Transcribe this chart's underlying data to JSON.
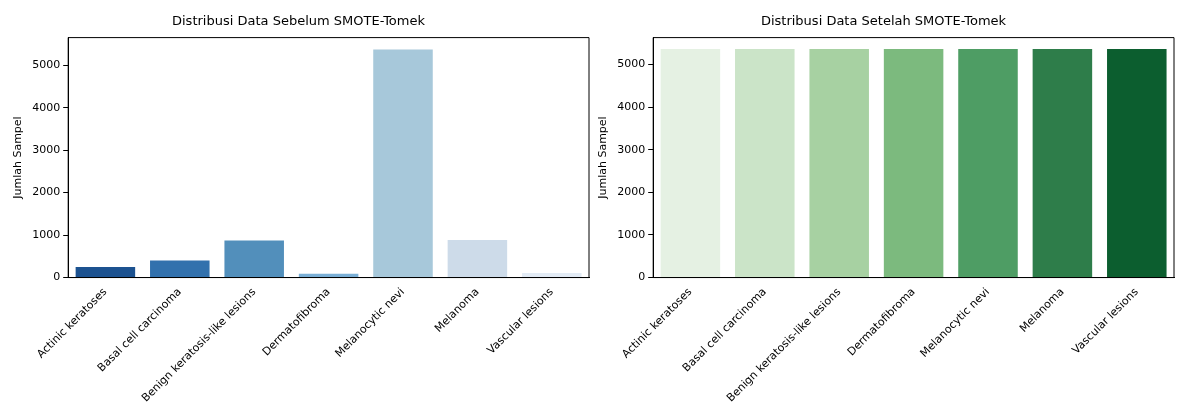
{
  "chart_data": [
    {
      "type": "bar",
      "title": "Distribusi Data Sebelum SMOTE-Tomek",
      "ylabel": "Jumlah Sampel",
      "categories": [
        "Actinic keratoses",
        "Basal cell carcinoma",
        "Benign keratosis-like lesions",
        "Dermatofibroma",
        "Melanocytic nevi",
        "Melanoma",
        "Vascular lesions"
      ],
      "values": [
        250,
        400,
        870,
        90,
        5370,
        885,
        110
      ],
      "colors": [
        "#1c5290",
        "#3271ad",
        "#528fbb",
        "#7aafd6",
        "#a7c8da",
        "#cddbe9",
        "#e2ebf5"
      ],
      "ylim": [
        0,
        5650
      ],
      "yticks": [
        0,
        1000,
        2000,
        3000,
        4000,
        5000
      ],
      "grid": false
    },
    {
      "type": "bar",
      "title": "Distribusi Data Setelah SMOTE-Tomek",
      "ylabel": "Jumlah Sampel",
      "categories": [
        "Actinic keratoses",
        "Basal cell carcinoma",
        "Benign keratosis-like lesions",
        "Dermatofibroma",
        "Melanocytic nevi",
        "Melanoma",
        "Vascular lesions"
      ],
      "values": [
        5360,
        5360,
        5360,
        5360,
        5360,
        5360,
        5360
      ],
      "colors": [
        "#e5f1e3",
        "#cbe4c8",
        "#a7d1a2",
        "#7cba7e",
        "#4e9d64",
        "#2e7d4a",
        "#0c5e2f"
      ],
      "ylim": [
        0,
        5630
      ],
      "yticks": [
        0,
        1000,
        2000,
        3000,
        4000,
        5000
      ],
      "grid": false
    }
  ]
}
